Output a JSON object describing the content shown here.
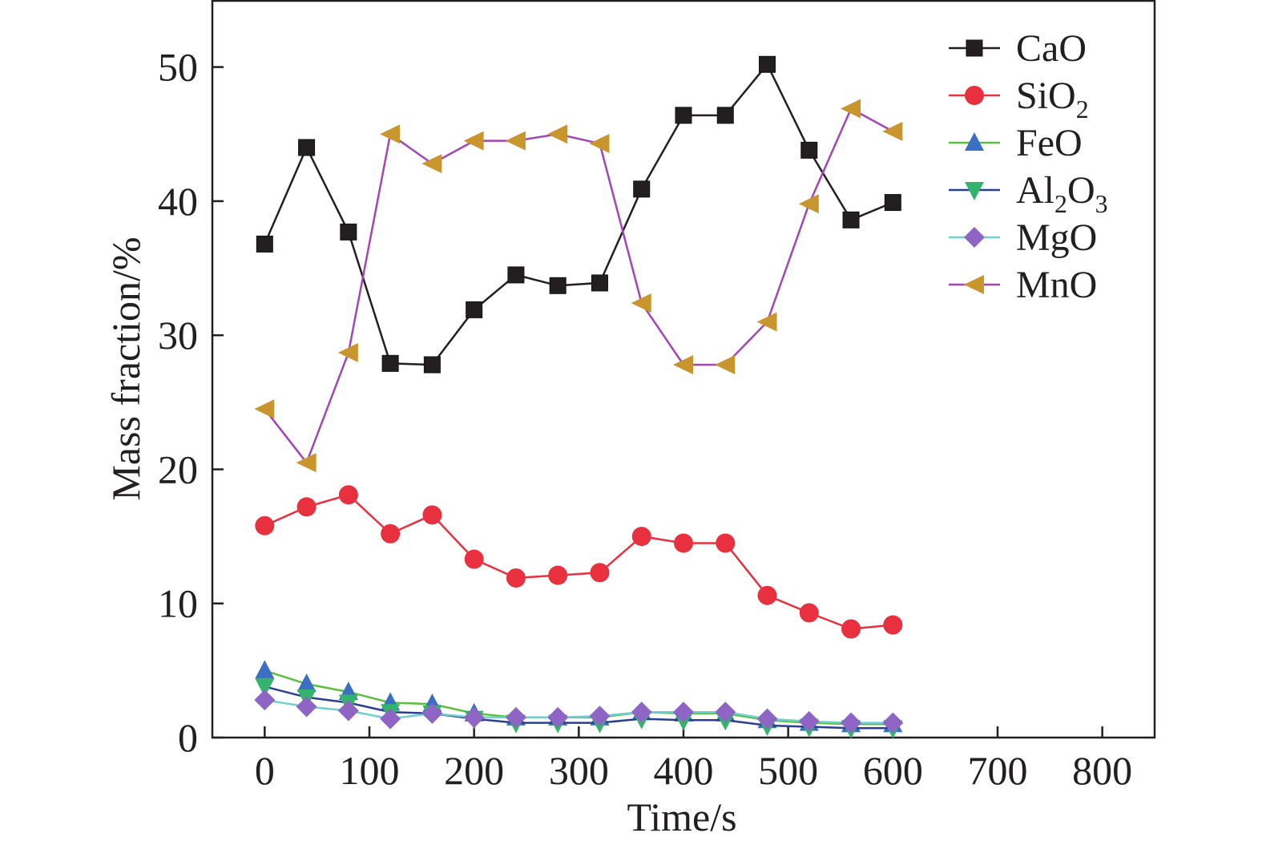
{
  "chart_data": {
    "type": "line",
    "xlabel": "Time/s",
    "ylabel": "Mass fraction/%",
    "xlim": [
      -50,
      850
    ],
    "ylim": [
      0,
      55
    ],
    "xticks": [
      0,
      100,
      200,
      300,
      400,
      500,
      600,
      700,
      800
    ],
    "yticks": [
      0,
      10,
      20,
      30,
      40,
      50
    ],
    "grid": false,
    "legend_position": "top-right",
    "x": [
      0,
      40,
      80,
      120,
      160,
      200,
      240,
      280,
      320,
      360,
      400,
      440,
      480,
      520,
      560,
      600
    ],
    "series": [
      {
        "name": "CaO",
        "legend_parts": [
          [
            "CaO",
            "base"
          ]
        ],
        "color": "#231f20",
        "marker": "square",
        "values": [
          36.8,
          44.0,
          37.7,
          27.9,
          27.8,
          31.9,
          34.5,
          33.7,
          33.9,
          40.9,
          46.4,
          46.4,
          50.2,
          43.8,
          38.6,
          39.9
        ]
      },
      {
        "name": "SiO2",
        "legend_parts": [
          [
            "SiO",
            "base"
          ],
          [
            "2",
            "sub"
          ]
        ],
        "color": "#e8303f",
        "marker": "circle",
        "values": [
          15.8,
          17.2,
          18.1,
          15.2,
          16.6,
          13.3,
          11.9,
          12.1,
          12.3,
          15.0,
          14.5,
          14.5,
          10.6,
          9.3,
          8.1,
          8.4
        ]
      },
      {
        "name": "FeO",
        "legend_parts": [
          [
            "FeO",
            "base"
          ]
        ],
        "color": "#3a6fc4",
        "line_color": "#5cbf3f",
        "marker": "triangle-up",
        "values": [
          5.0,
          4.0,
          3.4,
          2.6,
          2.5,
          1.8,
          1.5,
          1.5,
          1.5,
          1.9,
          1.8,
          1.8,
          1.3,
          1.1,
          1.0,
          1.0
        ]
      },
      {
        "name": "Al2O3",
        "legend_parts": [
          [
            "Al",
            "base"
          ],
          [
            "2",
            "sub"
          ],
          [
            "O",
            "base"
          ],
          [
            "3",
            "sub"
          ]
        ],
        "color": "#33b36b",
        "line_color": "#2c3e91",
        "marker": "triangle-down",
        "values": [
          3.8,
          3.0,
          2.6,
          1.9,
          1.8,
          1.4,
          1.1,
          1.1,
          1.1,
          1.4,
          1.3,
          1.3,
          0.9,
          0.8,
          0.7,
          0.7
        ]
      },
      {
        "name": "MgO",
        "legend_parts": [
          [
            "MgO",
            "base"
          ]
        ],
        "color": "#8e64c5",
        "line_color": "#6fd0d0",
        "marker": "diamond",
        "values": [
          2.8,
          2.3,
          2.0,
          1.4,
          1.8,
          1.5,
          1.5,
          1.5,
          1.6,
          1.9,
          1.9,
          1.9,
          1.4,
          1.2,
          1.1,
          1.1
        ]
      },
      {
        "name": "MnO",
        "legend_parts": [
          [
            "MnO",
            "base"
          ]
        ],
        "color": "#c9962d",
        "line_color": "#a346b5",
        "marker": "triangle-left",
        "values": [
          24.5,
          20.5,
          28.7,
          45.0,
          42.8,
          44.5,
          44.5,
          45.0,
          44.3,
          32.4,
          27.8,
          27.8,
          31.0,
          39.8,
          46.9,
          45.2
        ]
      }
    ]
  }
}
